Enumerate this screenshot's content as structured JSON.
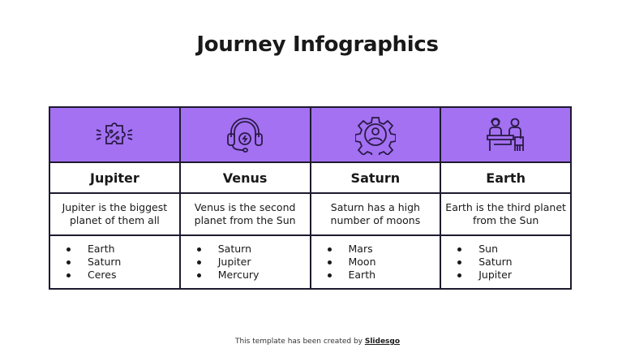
{
  "title": "Journey Infographics",
  "accent_color": "#a371f2",
  "columns": [
    {
      "icon": "puzzle-percent-icon",
      "name": "Jupiter",
      "description": "Jupiter is the biggest planet of them all",
      "items": [
        "Earth",
        "Saturn",
        "Ceres"
      ]
    },
    {
      "icon": "headset-icon",
      "name": "Venus",
      "description": "Venus is the second planet from the Sun",
      "items": [
        "Saturn",
        "Jupiter",
        "Mercury"
      ]
    },
    {
      "icon": "gear-user-icon",
      "name": "Saturn",
      "description": "Saturn has a high number of moons",
      "items": [
        "Mars",
        "Moon",
        "Earth"
      ]
    },
    {
      "icon": "office-desk-icon",
      "name": "Earth",
      "description": "Earth is the third planet from the Sun",
      "items": [
        "Sun",
        "Saturn",
        "Jupiter"
      ]
    }
  ],
  "footer": {
    "text": "This template has been created by ",
    "brand": "Slidesgo"
  }
}
